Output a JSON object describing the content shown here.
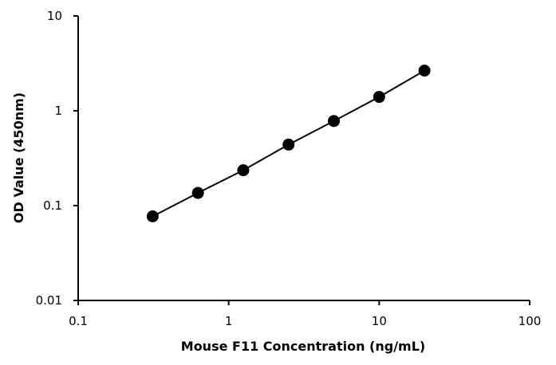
{
  "chart_data": {
    "type": "scatter",
    "title": "",
    "xlabel": "Mouse F11 Concentration (ng/mL)",
    "ylabel": "OD Value (450nm)",
    "x_scale": "log",
    "y_scale": "log",
    "xlim": [
      0.1,
      100
    ],
    "ylim": [
      0.01,
      10
    ],
    "x_ticks": [
      0.1,
      1,
      10,
      100
    ],
    "x_tick_labels": [
      "0.1",
      "1",
      "10",
      "100"
    ],
    "y_ticks": [
      0.01,
      0.1,
      1,
      10
    ],
    "y_tick_labels": [
      "0.01",
      "0.1",
      "1",
      "10"
    ],
    "grid": false,
    "legend": "none",
    "series": [
      {
        "x": [
          0.3125,
          0.625,
          1.25,
          2.5,
          5,
          10,
          20
        ],
        "y": [
          0.077,
          0.136,
          0.236,
          0.44,
          0.78,
          1.4,
          2.65
        ],
        "marker": "circle",
        "line": true,
        "color": "#000000"
      }
    ]
  }
}
